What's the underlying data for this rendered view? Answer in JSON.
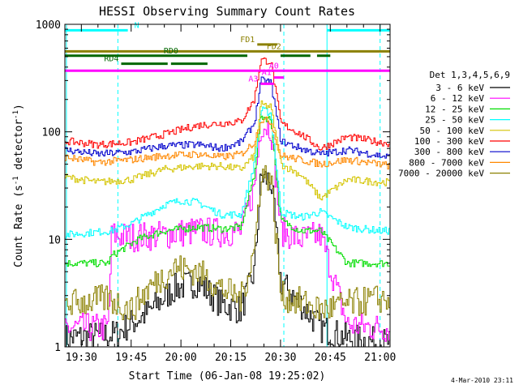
{
  "chart_data": {
    "type": "line",
    "title": "HESSI Observing Summary Count Rates",
    "xlabel": "Start Time (06-Jan-08 19:25:02)",
    "ylabel_main": "Count Rate (s",
    "ylabel_sup1": "-1",
    "ylabel_mid": " detector",
    "ylabel_sup2": "-1",
    "ylabel_end": ")",
    "date_stamp": "4-Mar-2010 23:11",
    "x_range": [
      "19:25:02",
      "21:03:00"
    ],
    "x_ticks": [
      "19:30",
      "19:45",
      "20:00",
      "20:15",
      "20:30",
      "20:45",
      "21:00"
    ],
    "y_scale": "log",
    "y_range": [
      1,
      1000
    ],
    "y_ticks": [
      {
        "value": 1,
        "label": "1"
      },
      {
        "value": 10,
        "label": "10"
      },
      {
        "value": 100,
        "label": "100"
      },
      {
        "value": 1000,
        "label": "1000"
      }
    ],
    "legend": {
      "placement": "right",
      "title": "Det 1,3,4,5,6,9"
    },
    "series": [
      {
        "name": "3 - 6 keV",
        "color": "#000000",
        "x": [
          "19:25",
          "19:40",
          "19:50",
          "19:58",
          "20:05",
          "20:12",
          "20:18",
          "20:22",
          "20:24",
          "20:27",
          "20:30",
          "20:36",
          "20:42",
          "20:50",
          "21:00",
          "21:03"
        ],
        "values": [
          1.2,
          1.3,
          2.1,
          3.5,
          4.0,
          2.5,
          2.2,
          5,
          38,
          35,
          4,
          2.5,
          1.5,
          1.2,
          1.1,
          1.1
        ]
      },
      {
        "name": "6 - 12 keV",
        "color": "#ff00ff",
        "x": [
          "19:25",
          "19:38",
          "19:39",
          "19:45",
          "19:55",
          "20:05",
          "20:12",
          "20:18",
          "20:22",
          "20:24",
          "20:27",
          "20:30",
          "20:36",
          "20:42",
          "20:50",
          "21:00",
          "21:03"
        ],
        "values": [
          1.5,
          1.5,
          11,
          10.5,
          11,
          12,
          11.5,
          12,
          30,
          120,
          110,
          12,
          10,
          11,
          1.6,
          1.5,
          1.5
        ]
      },
      {
        "name": "12 - 25 keV",
        "color": "#00dd00",
        "x": [
          "19:25",
          "19:38",
          "19:39",
          "19:47",
          "19:55",
          "20:05",
          "20:12",
          "20:18",
          "20:22",
          "20:24",
          "20:27",
          "20:30",
          "20:36",
          "20:42",
          "20:50",
          "21:00",
          "21:03"
        ],
        "values": [
          6,
          6,
          7,
          10,
          12,
          13,
          12.5,
          13,
          40,
          140,
          130,
          15,
          12,
          12,
          6,
          6,
          6
        ]
      },
      {
        "name": "25 - 50 keV",
        "color": "#00ffff",
        "x": [
          "19:25",
          "19:39",
          "19:45",
          "19:55",
          "20:00",
          "20:05",
          "20:12",
          "20:18",
          "20:22",
          "20:24",
          "20:27",
          "20:30",
          "20:36",
          "20:42",
          "20:50",
          "21:00",
          "21:03"
        ],
        "values": [
          11,
          12,
          14,
          21,
          23,
          22,
          17,
          17,
          50,
          160,
          150,
          18,
          16,
          18,
          13,
          12,
          12
        ]
      },
      {
        "name": "50 - 100 keV",
        "color": "#d4c400",
        "x": [
          "19:25",
          "19:35",
          "19:45",
          "19:55",
          "20:05",
          "20:12",
          "20:18",
          "20:22",
          "20:24",
          "20:27",
          "20:30",
          "20:36",
          "20:42",
          "20:50",
          "21:00",
          "21:03"
        ],
        "values": [
          38,
          34,
          36,
          45,
          48,
          48,
          45,
          60,
          180,
          170,
          50,
          40,
          24,
          36,
          34,
          34
        ]
      },
      {
        "name": "100 - 300 keV",
        "color": "#ff0000",
        "x": [
          "19:25",
          "19:35",
          "19:45",
          "19:55",
          "20:05",
          "20:12",
          "20:18",
          "20:22",
          "20:24",
          "20:27",
          "20:30",
          "20:36",
          "20:42",
          "20:50",
          "21:00",
          "21:03"
        ],
        "values": [
          82,
          76,
          80,
          95,
          115,
          120,
          125,
          200,
          470,
          450,
          120,
          95,
          70,
          90,
          80,
          78
        ]
      },
      {
        "name": "300 - 800 keV",
        "color": "#0000cc",
        "x": [
          "19:25",
          "19:35",
          "19:45",
          "19:55",
          "20:05",
          "20:12",
          "20:18",
          "20:22",
          "20:24",
          "20:27",
          "20:30",
          "20:36",
          "20:42",
          "20:50",
          "21:00",
          "21:03"
        ],
        "values": [
          68,
          62,
          65,
          74,
          76,
          70,
          80,
          120,
          300,
          290,
          82,
          70,
          62,
          68,
          60,
          58
        ]
      },
      {
        "name": "800 - 7000 keV",
        "color": "#ff8800",
        "x": [
          "19:25",
          "19:35",
          "19:45",
          "19:55",
          "20:05",
          "20:12",
          "20:18",
          "20:22",
          "20:24",
          "20:27",
          "20:30",
          "20:36",
          "20:42",
          "20:50",
          "21:00",
          "21:03"
        ],
        "values": [
          58,
          52,
          55,
          60,
          62,
          58,
          62,
          80,
          130,
          125,
          60,
          55,
          50,
          55,
          50,
          48
        ]
      },
      {
        "name": "7000 - 20000 keV",
        "color": "#8b8000",
        "x": [
          "19:25",
          "19:38",
          "19:45",
          "19:50",
          "19:58",
          "20:05",
          "20:12",
          "20:18",
          "20:22",
          "20:24",
          "20:27",
          "20:30",
          "20:36",
          "20:42",
          "20:50",
          "21:00",
          "21:03"
        ],
        "values": [
          2.5,
          2.8,
          2.2,
          3.5,
          5.5,
          5.0,
          3.5,
          2.8,
          8,
          40,
          38,
          3,
          2.6,
          2.2,
          2.5,
          2.8,
          2.8
        ]
      }
    ],
    "annotations": {
      "flag_bars": [
        {
          "label": "N",
          "color": "#00ffff",
          "segments": [
            [
              "19:25",
              "19:44"
            ],
            [
              "20:44",
              "21:03"
            ]
          ],
          "y": 880
        },
        {
          "label": "FD1",
          "color": "#8b8000",
          "segments": [
            [
              "20:23",
              "20:29"
            ]
          ],
          "y": 650
        },
        {
          "label": "FD2",
          "color": "#8b8000",
          "segments": [
            [
              "19:25",
              "21:03"
            ]
          ],
          "y": 560
        },
        {
          "label": "RD0",
          "color": "#006600",
          "segments": [
            [
              "19:25",
              "20:20"
            ],
            [
              "20:30",
              "20:39"
            ],
            [
              "20:41",
              "20:45"
            ]
          ],
          "y": 510
        },
        {
          "label": "RD4",
          "color": "#006600",
          "segments": [
            [
              "19:42",
              "19:56"
            ],
            [
              "19:57",
              "20:08"
            ]
          ],
          "y": 430
        },
        {
          "label": "A0",
          "color": "#ff00ff",
          "segments": [
            [
              "19:25",
              "21:03"
            ]
          ],
          "y": 370
        },
        {
          "label": "A1",
          "color": "#ff00ff",
          "segments": [
            [
              "20:28",
              "20:31"
            ]
          ],
          "y": 320
        },
        {
          "label": "A3",
          "color": "#ff00ff",
          "segments": [
            [
              "20:24",
              "20:28"
            ]
          ],
          "y": 280
        }
      ],
      "vlines_solid": [
        "19:25:30",
        "20:44"
      ],
      "vlines_dashed": [
        "19:41",
        "20:31",
        "21:00"
      ]
    }
  }
}
